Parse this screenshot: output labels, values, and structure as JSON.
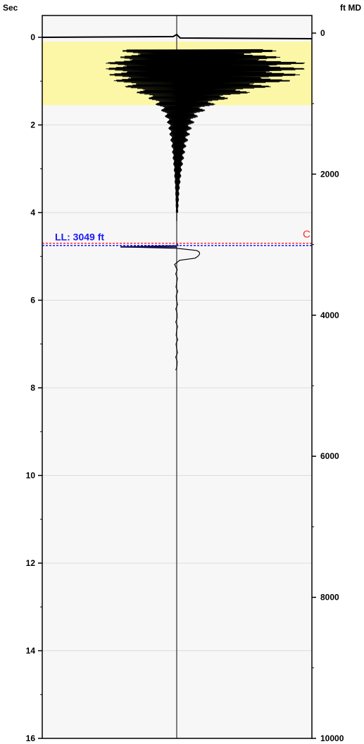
{
  "chart_data": {
    "type": "line",
    "left_axis": {
      "unit": "Sec",
      "ticks": [
        "0",
        "2",
        "4",
        "6",
        "8",
        "10",
        "12",
        "14",
        "16"
      ],
      "range": [
        0,
        16
      ]
    },
    "right_axis": {
      "unit": "ft MD",
      "ticks": [
        "0",
        "2000",
        "4000",
        "6000",
        "8000",
        "10000"
      ],
      "range": [
        0,
        10000
      ]
    },
    "highlight_band": {
      "from_sec": 0.1,
      "to_sec": 1.55,
      "color": "#fbf7a6"
    },
    "center_line": {
      "color": "#555555"
    },
    "markers": {
      "liquid_level": {
        "label": "LL: 3049 ft",
        "sec": 4.8,
        "color": "#1a1aff"
      },
      "collar": {
        "label": "C",
        "sec": 4.7,
        "color": "#ff2a2a"
      }
    },
    "trace": {
      "color": "#000000",
      "decay_series": [
        {
          "sec": 0.0,
          "amp": 1.0
        },
        {
          "sec": 0.2,
          "amp": 0.8
        },
        {
          "sec": 0.4,
          "amp": 0.7
        },
        {
          "sec": 0.6,
          "amp": 0.98
        },
        {
          "sec": 0.8,
          "amp": 0.95
        },
        {
          "sec": 1.0,
          "amp": 0.85
        },
        {
          "sec": 1.2,
          "amp": 0.62
        },
        {
          "sec": 1.4,
          "amp": 0.38
        },
        {
          "sec": 1.6,
          "amp": 0.24
        },
        {
          "sec": 1.8,
          "amp": 0.16
        },
        {
          "sec": 2.0,
          "amp": 0.12
        },
        {
          "sec": 2.5,
          "amp": 0.07
        },
        {
          "sec": 3.0,
          "amp": 0.04
        },
        {
          "sec": 3.5,
          "amp": 0.02
        },
        {
          "sec": 4.0,
          "amp": 0.01
        }
      ],
      "reflection": {
        "sec": 4.8,
        "amp_left": -0.42,
        "amp_right": 0.2
      },
      "end_sec": 7.6
    }
  }
}
